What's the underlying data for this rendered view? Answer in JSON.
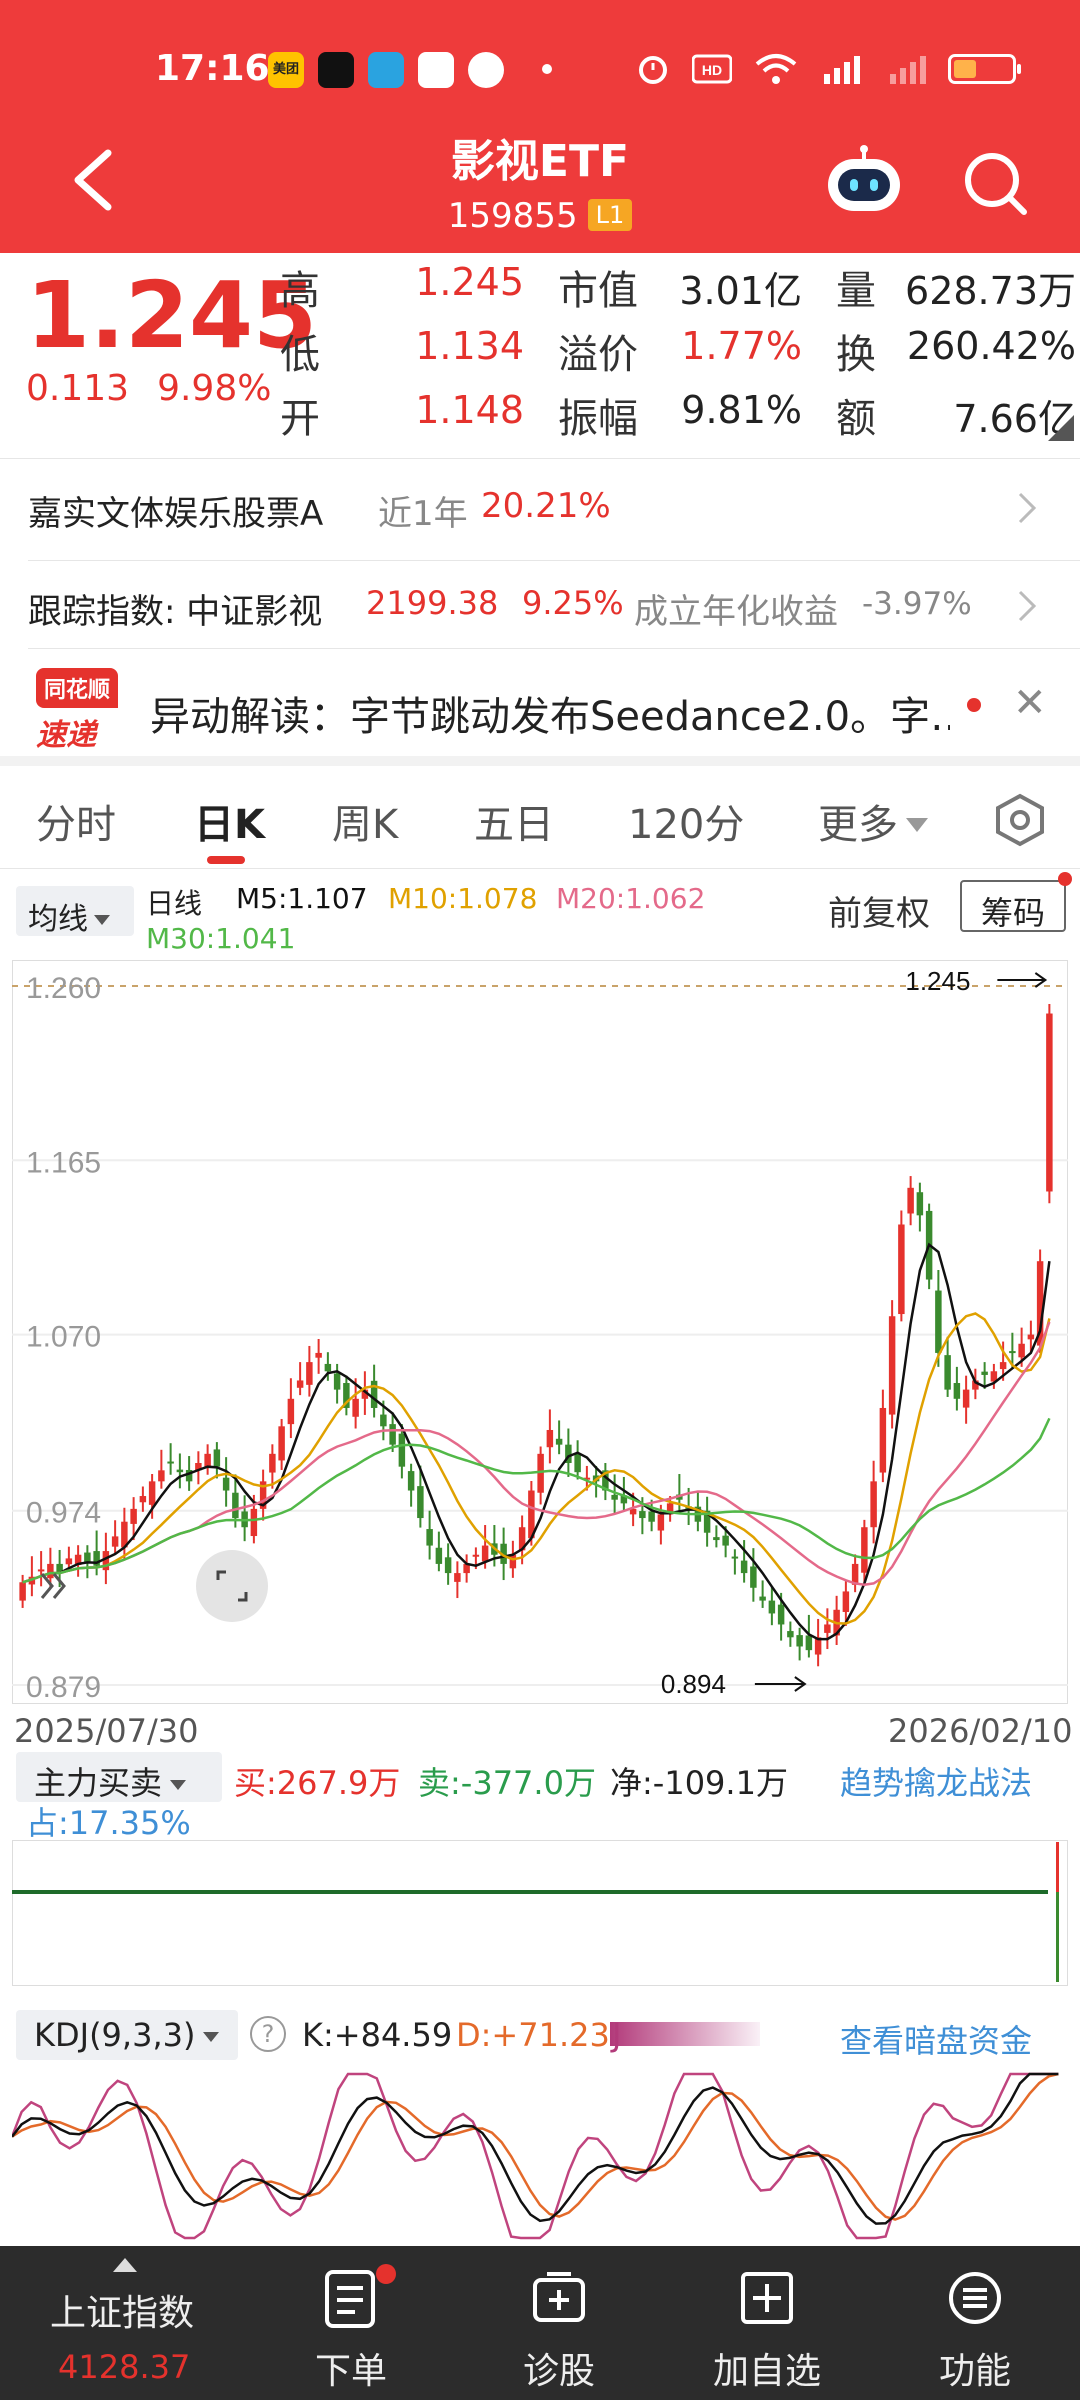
{
  "status_bar": {
    "time": "17:16",
    "app_badge": "美团"
  },
  "header": {
    "title": "影视ETF",
    "code": "159855",
    "level_badge": "L1"
  },
  "quote": {
    "price": "1.245",
    "change": "0.113",
    "change_pct": "9.98%",
    "high_label": "高",
    "high": "1.245",
    "low_label": "低",
    "low": "1.134",
    "open_label": "开",
    "open": "1.148",
    "mcap_label": "市值",
    "mcap": "3.01亿",
    "premium_label": "溢价",
    "premium": "1.77%",
    "amplitude_label": "振幅",
    "amplitude": "9.81%",
    "volume_label": "量",
    "volume": "628.73万",
    "turnover_label": "换",
    "turnover": "260.42%",
    "amount_label": "额",
    "amount": "7.66亿"
  },
  "fund_row": {
    "name": "嘉实文体娱乐股票A",
    "period": "近1年",
    "return": "20.21%"
  },
  "index_row": {
    "label": "跟踪指数: 中证影视",
    "value": "2199.38",
    "change": "9.25%",
    "annual_label": "成立年化收益",
    "annual": "-3.97%"
  },
  "news": {
    "logo_top": "同花顺",
    "logo_bottom": "速递",
    "text": "异动解读：字节跳动发布Seedance2.0。字…"
  },
  "tabs": [
    {
      "label": "分时"
    },
    {
      "label": "日K"
    },
    {
      "label": "周K"
    },
    {
      "label": "五日"
    },
    {
      "label": "120分"
    },
    {
      "label": "更多"
    }
  ],
  "ma_bar": {
    "selector": "均线",
    "period": "日线",
    "m5": "M5:1.107",
    "m10": "M10:1.078",
    "m20": "M20:1.062",
    "m30": "M30:1.041",
    "adjust": "前复权",
    "chip": "筹码"
  },
  "colors": {
    "up": "#e5322d",
    "down": "#3a8a2e",
    "ma5": "#111111",
    "ma10": "#e0a100",
    "ma20": "#e46a8a",
    "ma30": "#52b848"
  },
  "chart_data": {
    "type": "candlestick",
    "y_ticks": [
      "1.260",
      "1.165",
      "1.070",
      "0.974",
      "0.879"
    ],
    "ylim": [
      0.879,
      1.26
    ],
    "x_labels": [
      "2025/07/30",
      "2026/02/10"
    ],
    "annotations": {
      "max_label": "1.245",
      "min_label": "0.894"
    },
    "close_approx": [
      0.935,
      0.938,
      0.942,
      0.945,
      0.94,
      0.948,
      0.95,
      0.946,
      0.944,
      0.952,
      0.96,
      0.968,
      0.975,
      0.982,
      0.99,
      0.996,
      1.0,
      0.995,
      0.99,
      1.0,
      1.005,
      0.998,
      0.985,
      0.97,
      0.965,
      0.975,
      0.99,
      1.005,
      1.02,
      1.035,
      1.045,
      1.055,
      1.06,
      1.05,
      1.04,
      1.03,
      1.035,
      1.04,
      1.03,
      1.02,
      1.01,
      0.998,
      0.985,
      0.97,
      0.955,
      0.945,
      0.94,
      0.94,
      0.945,
      0.95,
      0.955,
      0.95,
      0.945,
      0.95,
      0.965,
      0.985,
      1.005,
      1.018,
      1.01,
      1.0,
      0.995,
      0.992,
      0.99,
      0.985,
      0.98,
      0.978,
      0.975,
      0.97,
      0.968,
      0.972,
      0.978,
      0.98,
      0.975,
      0.968,
      0.962,
      0.958,
      0.955,
      0.948,
      0.94,
      0.932,
      0.925,
      0.918,
      0.912,
      0.905,
      0.9,
      0.898,
      0.905,
      0.912,
      0.92,
      0.93,
      0.945,
      0.965,
      0.99,
      1.03,
      1.08,
      1.13,
      1.15,
      1.135,
      1.1,
      1.06,
      1.04,
      1.035,
      1.04,
      1.045,
      1.048,
      1.05,
      1.055,
      1.06,
      1.065,
      1.07,
      1.11,
      1.245
    ],
    "volume_approx": [],
    "ma": {
      "M5": 1.107,
      "M10": 1.078,
      "M20": 1.062,
      "M30": 1.041
    }
  },
  "flow": {
    "selector": "主力买卖",
    "buy": "买:267.9万",
    "sell": "卖:-377.0万",
    "net": "净:-109.1万",
    "link": "趋势擒龙战法",
    "share": "占:17.35%"
  },
  "kdj": {
    "selector": "KDJ(9,3,3)",
    "help": "?",
    "k": "K:+84.59",
    "d": "D:+71.23",
    "j": "J",
    "link": "查看暗盘资金"
  },
  "bottom_nav": {
    "index_name": "上证指数",
    "index_value": "4128.37",
    "items": [
      {
        "label": "下单"
      },
      {
        "label": "诊股"
      },
      {
        "label": "加自选"
      },
      {
        "label": "功能"
      }
    ]
  }
}
